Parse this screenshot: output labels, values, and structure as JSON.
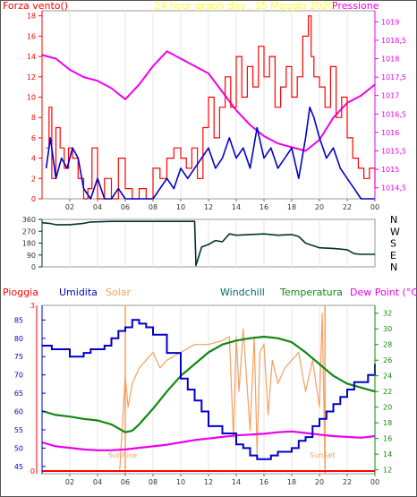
{
  "colors": {
    "wind": "#ff0000",
    "gust": "#0000cc",
    "pressure": "#ee00ee",
    "direction": "#003333",
    "rain": "#ff0000",
    "humidity": "#0000cc",
    "solar": "#f5a060",
    "windchill": "#006666",
    "temperature": "#118811",
    "dewpoint": "#ee00ee",
    "title": "#ffff33",
    "sunrise_text": "#f5a060"
  },
  "header": {
    "left_label": "Forza vento()",
    "title": "24 hour graph day , 15 Maggio 2020",
    "right_label": "Pressione"
  },
  "legend2": {
    "rain": "Pioggia",
    "humidity": "Umidita",
    "solar": "Solar",
    "windchill": "Windchill",
    "temperature": "Temperatura",
    "dewpoint": "Dew Point (°C)"
  },
  "sun": {
    "rise_label": "SunRise",
    "set_label": "SunSet",
    "rise_hour": 6.0,
    "set_hour": 20.4
  },
  "chart_data": [
    {
      "type": "line",
      "title": "24 hour graph day , 15 Maggio 2020",
      "x_ticks": [
        "02",
        "04",
        "06",
        "08",
        "10",
        "12",
        "14",
        "16",
        "18",
        "20",
        "22",
        "00"
      ],
      "y_left_ticks": [
        "0",
        "2",
        "4",
        "6",
        "8",
        "10",
        "12",
        "14",
        "16",
        "18"
      ],
      "y_left_range": [
        0,
        18.5
      ],
      "y_right_ticks": [
        "1014,5",
        "1015",
        "1015,5",
        "1016",
        "1016,5",
        "1017",
        "1017,5",
        "1018",
        "1018,5",
        "1019"
      ],
      "y_right_range": [
        1014.2,
        1019.3
      ],
      "series": [
        {
          "name": "Forza vento",
          "axis": "left",
          "x": [
            0.3,
            0.5,
            0.7,
            1.0,
            1.3,
            1.6,
            1.9,
            2.2,
            2.6,
            3.0,
            3.3,
            3.6,
            4.0,
            4.5,
            5.0,
            5.5,
            6.0,
            6.5,
            7.0,
            7.5,
            8.0,
            8.5,
            9.0,
            9.5,
            10.0,
            10.4,
            10.8,
            11.2,
            11.6,
            12.0,
            12.4,
            12.8,
            13.2,
            13.6,
            14.0,
            14.4,
            14.8,
            15.2,
            15.6,
            16.0,
            16.4,
            16.8,
            17.2,
            17.6,
            18.0,
            18.4,
            18.8,
            19.2,
            19.4,
            19.6,
            20.0,
            20.4,
            20.8,
            21.2,
            21.6,
            22.0,
            22.4,
            22.8,
            23.2,
            23.6,
            24.0
          ],
          "values": [
            5,
            9,
            2,
            7,
            5,
            3,
            5,
            4,
            2,
            0,
            1,
            5,
            0,
            2,
            0,
            4,
            1,
            0,
            1,
            0,
            3,
            2,
            4,
            5,
            4,
            3,
            5,
            2,
            7,
            10,
            6,
            9,
            12,
            9,
            14,
            10,
            13,
            11,
            15,
            12,
            14,
            9,
            11,
            13,
            10,
            12,
            16,
            18,
            14,
            12,
            11,
            9,
            13,
            8,
            10,
            6,
            4,
            3,
            2,
            3,
            1
          ]
        },
        {
          "name": "Raffica",
          "axis": "left",
          "x": [
            0.3,
            0.6,
            1.0,
            1.4,
            1.8,
            2.2,
            2.6,
            3.0,
            3.5,
            4.0,
            4.5,
            5.0,
            5.5,
            6.0,
            6.5,
            7.0,
            7.5,
            8.0,
            8.5,
            9.0,
            9.5,
            10.0,
            10.5,
            11.0,
            11.5,
            12.0,
            12.5,
            13.0,
            13.5,
            14.0,
            14.5,
            15.0,
            15.5,
            16.0,
            16.5,
            17.0,
            17.5,
            18.0,
            18.5,
            19.0,
            19.3,
            19.6,
            20.0,
            20.5,
            21.0,
            21.5,
            22.0,
            22.5,
            23.0,
            23.5,
            24.0
          ],
          "values": [
            3,
            6,
            2,
            4,
            3,
            5,
            4,
            1,
            0,
            2,
            0,
            0,
            1,
            0,
            0,
            0,
            0,
            0,
            1,
            2,
            1,
            3,
            2,
            3,
            4,
            5,
            3,
            4,
            6,
            4,
            5,
            3,
            7,
            4,
            5,
            3,
            4,
            5,
            2,
            6,
            9,
            8,
            6,
            4,
            5,
            3,
            2,
            1,
            0,
            0,
            0
          ]
        },
        {
          "name": "Pressione",
          "axis": "right",
          "x": [
            0.0,
            1.0,
            2.0,
            3.0,
            4.0,
            5.0,
            6.0,
            7.0,
            8.0,
            9.0,
            10.0,
            11.0,
            12.0,
            13.0,
            14.0,
            15.0,
            16.0,
            17.0,
            18.0,
            19.0,
            20.0,
            21.0,
            22.0,
            23.0,
            24.0
          ],
          "values": [
            1018.1,
            1018.0,
            1017.7,
            1017.5,
            1017.4,
            1017.2,
            1016.9,
            1017.3,
            1017.8,
            1018.2,
            1018.0,
            1017.8,
            1017.6,
            1017.1,
            1016.6,
            1016.2,
            1015.9,
            1015.7,
            1015.6,
            1015.5,
            1015.8,
            1016.4,
            1016.8,
            1017.0,
            1017.3
          ]
        }
      ]
    },
    {
      "type": "line",
      "x_ticks": [
        "02",
        "04",
        "06",
        "08",
        "10",
        "12",
        "14",
        "16",
        "18",
        "20",
        "22",
        "00"
      ],
      "y_left_ticks": [
        "0",
        "90",
        "180",
        "270",
        "360"
      ],
      "y_left_range": [
        0,
        360
      ],
      "y_right_ticks": [
        "N",
        "E",
        "S",
        "W",
        "N"
      ],
      "series": [
        {
          "name": "Direzione vento",
          "axis": "left",
          "x": [
            0.0,
            0.5,
            1.0,
            2.0,
            3.0,
            3.5,
            5.0,
            7.0,
            9.0,
            10.5,
            11.0,
            11.1,
            11.5,
            12.0,
            12.5,
            13.0,
            13.5,
            14.0,
            15.0,
            16.0,
            17.0,
            18.0,
            18.5,
            19.0,
            20.0,
            21.0,
            22.0,
            22.5,
            23.0,
            24.0
          ],
          "values": [
            335,
            330,
            320,
            320,
            330,
            340,
            345,
            345,
            345,
            345,
            345,
            10,
            150,
            170,
            200,
            190,
            250,
            240,
            245,
            250,
            240,
            245,
            230,
            180,
            145,
            140,
            130,
            100,
            95,
            95
          ]
        }
      ]
    },
    {
      "type": "line",
      "x_ticks": [
        "02",
        "04",
        "06",
        "08",
        "10",
        "12",
        "14",
        "16",
        "18",
        "20",
        "22",
        "00"
      ],
      "y_left_ticks": [
        "45",
        "50",
        "55",
        "60",
        "65",
        "70",
        "75",
        "80",
        "85"
      ],
      "y_left_range": [
        43,
        89
      ],
      "y_right_ticks": [
        "12",
        "14",
        "16",
        "18",
        "20",
        "22",
        "24",
        "26",
        "28",
        "30",
        "32"
      ],
      "y_right_range": [
        11.5,
        33
      ],
      "y_rain_ticks": [
        "0",
        "3"
      ],
      "series": [
        {
          "name": "Umidita",
          "axis": "left",
          "x": [
            0.0,
            0.7,
            1.5,
            2.0,
            2.7,
            3.0,
            3.5,
            4.0,
            4.5,
            5.0,
            5.5,
            6.0,
            6.5,
            7.0,
            7.5,
            8.0,
            9.0,
            10.0,
            10.5,
            11.0,
            11.5,
            12.0,
            13.0,
            14.0,
            14.5,
            15.0,
            15.5,
            16.0,
            16.5,
            17.0,
            17.5,
            18.0,
            18.5,
            19.0,
            19.5,
            20.0,
            20.5,
            21.0,
            21.5,
            22.0,
            22.5,
            23.0,
            23.5,
            24.0
          ],
          "values": [
            78,
            77,
            77,
            75,
            75,
            76,
            77,
            77,
            78,
            80,
            82,
            83,
            85,
            84,
            83,
            81,
            76,
            69,
            66,
            63,
            60,
            56,
            54,
            51,
            50,
            48,
            47,
            47,
            48,
            49,
            49,
            50,
            52,
            53,
            56,
            58,
            60,
            62,
            64,
            66,
            68,
            68,
            70,
            73
          ]
        },
        {
          "name": "Solar",
          "axis": "right",
          "x": [
            5.6,
            5.8,
            6.0,
            6.2,
            6.5,
            7.0,
            7.5,
            8.0,
            8.5,
            9.0,
            10.0,
            11.0,
            12.0,
            13.0,
            13.5,
            13.8,
            14.0,
            14.2,
            14.5,
            15.0,
            15.3,
            15.5,
            15.7,
            16.0,
            16.3,
            16.6,
            17.0,
            17.5,
            18.0,
            18.5,
            19.0,
            19.5,
            20.0,
            20.2,
            20.4
          ],
          "values": [
            12,
            18,
            24,
            20,
            23,
            25,
            26,
            27,
            25,
            26,
            27,
            28,
            28,
            28.5,
            29,
            16,
            29,
            22,
            30,
            17,
            29,
            14,
            27,
            28,
            19,
            26,
            23,
            25,
            26,
            27,
            22,
            26,
            20,
            32,
            12
          ]
        },
        {
          "name": "Windchill",
          "axis": "right",
          "x": [
            0.0,
            6.0,
            10.5
          ],
          "values": [
            19.5,
            17.5,
            22.0
          ]
        },
        {
          "name": "Temperatura",
          "axis": "right",
          "x": [
            0.0,
            1.0,
            2.0,
            3.0,
            4.0,
            5.0,
            5.5,
            6.0,
            6.5,
            7.0,
            8.0,
            9.0,
            10.0,
            11.0,
            12.0,
            13.0,
            14.0,
            15.0,
            16.0,
            17.0,
            18.0,
            19.0,
            20.0,
            21.0,
            22.0,
            23.0,
            24.0
          ],
          "values": [
            19.5,
            19.0,
            18.8,
            18.5,
            18.3,
            17.8,
            17.3,
            16.8,
            17.0,
            17.8,
            19.8,
            22.0,
            24.0,
            25.5,
            27.0,
            28.0,
            28.5,
            28.8,
            29.0,
            28.8,
            28.3,
            27.0,
            25.5,
            24.0,
            23.0,
            22.5,
            22.0
          ]
        },
        {
          "name": "Dew Point",
          "axis": "right",
          "x": [
            0.0,
            1.0,
            2.0,
            3.0,
            4.0,
            5.0,
            6.0,
            7.0,
            8.0,
            9.0,
            10.0,
            11.0,
            12.0,
            13.0,
            14.0,
            15.0,
            16.0,
            17.0,
            18.0,
            19.0,
            20.0,
            21.0,
            22.0,
            23.0,
            24.0
          ],
          "values": [
            15.5,
            15.0,
            14.8,
            14.6,
            14.5,
            14.5,
            14.6,
            14.8,
            15.0,
            15.2,
            15.5,
            15.8,
            16.0,
            16.2,
            16.4,
            16.5,
            16.6,
            16.8,
            16.9,
            16.7,
            16.5,
            16.3,
            16.2,
            16.1,
            16.3
          ]
        },
        {
          "name": "Pioggia",
          "axis": "rain",
          "x": [
            0.0,
            24.0
          ],
          "values": [
            0,
            0
          ]
        }
      ]
    }
  ]
}
